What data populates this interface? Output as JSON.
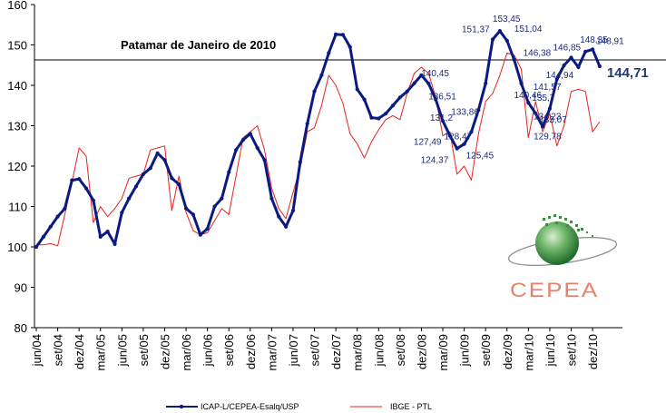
{
  "chart_data": {
    "type": "line",
    "title": "",
    "ylim": [
      80,
      160
    ],
    "yticks": [
      80,
      90,
      100,
      110,
      120,
      130,
      140,
      150,
      160
    ],
    "xtick_labels": [
      "jun/04",
      "set/04",
      "dez/04",
      "mar/05",
      "jun/05",
      "set/05",
      "dez/05",
      "mar/06",
      "jun/06",
      "set/06",
      "dez/06",
      "mar/07",
      "jun/07",
      "set/07",
      "dez/07",
      "mar/08",
      "jun/08",
      "set/08",
      "dez/08",
      "mar/09",
      "jun/09",
      "set/09",
      "dez/09",
      "mar/10",
      "jun/10",
      "set/10",
      "dez/10"
    ],
    "reference_line": {
      "value": 146.3,
      "label": "Patamar de Janeiro de 2010"
    },
    "series": [
      {
        "name": "ICAP-L/CEPEA-Esalq/USP",
        "color": "#0a1a80",
        "values": [
          100,
          102.5,
          105,
          107.5,
          109.5,
          116.5,
          116.8,
          114.5,
          111.5,
          102.5,
          103.8,
          100.7,
          108.5,
          112,
          115,
          118,
          119.5,
          123.2,
          121.5,
          117,
          115.5,
          109.5,
          108,
          103,
          104.5,
          110,
          112,
          118.5,
          124,
          126.5,
          128,
          124.5,
          121.5,
          112,
          107.5,
          105,
          109,
          121,
          130.5,
          138.5,
          142.5,
          148,
          152.6,
          152.5,
          149.5,
          139,
          136.5,
          132,
          131.8,
          133,
          135,
          137,
          138.5,
          140.5,
          142.5,
          140.45,
          136.51,
          131.2,
          127.49,
          124.37,
          125.45,
          128.47,
          133.86,
          140.5,
          151.37,
          153.45,
          151.04,
          146.38,
          140.46,
          135.7,
          133.07,
          129.78,
          134.23,
          141.57,
          144.94,
          146.85,
          144.5,
          148.35,
          148.91,
          144.71
        ]
      },
      {
        "name": "IBGE - PTL",
        "color": "#e62020",
        "values": [
          100.5,
          100.5,
          100.8,
          100.3,
          108,
          116,
          124.5,
          122.5,
          106,
          110,
          107.5,
          109.5,
          112,
          117,
          117.5,
          118,
          124,
          124.5,
          125,
          109,
          117.5,
          108.5,
          104,
          103,
          103.5,
          106.5,
          109.5,
          108,
          117.5,
          127,
          128.5,
          130,
          124,
          114.5,
          109.5,
          107,
          113.5,
          119.5,
          128.5,
          129.5,
          135,
          142.5,
          140,
          135.5,
          128,
          125.5,
          122,
          126,
          129,
          131.5,
          132.5,
          131.5,
          138,
          143,
          144.5,
          143,
          137,
          127.5,
          128.5,
          118,
          120,
          116.5,
          128,
          136,
          138,
          142.5,
          148,
          147.5,
          144,
          127,
          136,
          128.5,
          133,
          125,
          130,
          138.5,
          139,
          138.5,
          128.5,
          131
        ]
      }
    ],
    "annotations": [
      {
        "text": "153,45",
        "x": 65,
        "y": 153.45
      },
      {
        "text": "151,37",
        "x": 64,
        "y": 151.37
      },
      {
        "text": "151,04",
        "x": 66,
        "y": 151.04
      },
      {
        "text": "148,35",
        "x": 77,
        "y": 148.35
      },
      {
        "text": "148,91",
        "x": 78,
        "y": 148.91
      },
      {
        "text": "146,85",
        "x": 75,
        "y": 146.85
      },
      {
        "text": "146,38",
        "x": 67,
        "y": 146.38
      },
      {
        "text": "144,94",
        "x": 74,
        "y": 144.94
      },
      {
        "text": "144,71",
        "x": 79,
        "y": 144.71,
        "emphasis": true
      },
      {
        "text": "141,57",
        "x": 73,
        "y": 141.57
      },
      {
        "text": "140,46",
        "x": 68,
        "y": 140.46
      },
      {
        "text": "140,45",
        "x": 55,
        "y": 140.45
      },
      {
        "text": "136,51",
        "x": 56,
        "y": 136.51
      },
      {
        "text": "135,7",
        "x": 69,
        "y": 135.7
      },
      {
        "text": "134,23",
        "x": 72,
        "y": 134.23
      },
      {
        "text": "133,86",
        "x": 62,
        "y": 133.86
      },
      {
        "text": "133,07",
        "x": 70,
        "y": 133.07
      },
      {
        "text": "131,2",
        "x": 57,
        "y": 131.2
      },
      {
        "text": "129,78",
        "x": 71,
        "y": 129.78
      },
      {
        "text": "128,47",
        "x": 61,
        "y": 128.47
      },
      {
        "text": "127,49",
        "x": 58,
        "y": 127.49
      },
      {
        "text": "125,45",
        "x": 60,
        "y": 125.45
      },
      {
        "text": "124,37",
        "x": 59,
        "y": 124.37
      }
    ]
  },
  "logo": {
    "text": "CEPEA"
  }
}
